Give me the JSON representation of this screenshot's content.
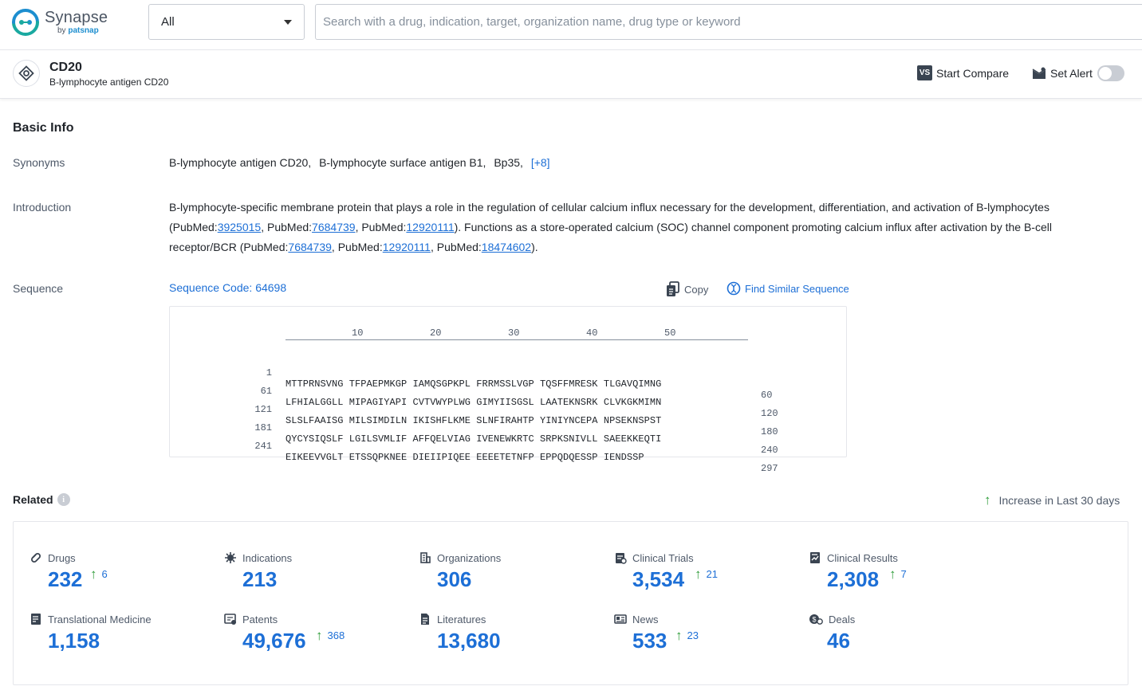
{
  "app": {
    "logo_main": "Synapse",
    "logo_by": "by ",
    "logo_brand": "patsnap"
  },
  "search": {
    "scope_value": "All",
    "placeholder": "Search with a drug, indication, target, organization name, drug type or keyword"
  },
  "entity": {
    "title": "CD20",
    "subtitle": "B-lymphocyte antigen CD20",
    "compare_label": "Start Compare",
    "compare_icon_text": "VS",
    "alert_label": "Set Alert",
    "alert_on": false
  },
  "basic_info": {
    "title": "Basic Info",
    "synonyms_label": "Synonyms",
    "synonyms": [
      "B-lymphocyte antigen CD20,",
      "B-lymphocyte surface antigen B1,",
      "Bp35,"
    ],
    "synonyms_more": "[+8]",
    "introduction_label": "Introduction",
    "intro": {
      "t1": "B-lymphocyte-specific membrane protein that plays a role in the regulation of cellular calcium influx necessary for the development, differentiation, and activation of B-lymphocytes (PubMed:",
      "l1": "3925015",
      "t2": ", PubMed:",
      "l2": "7684739",
      "t3": ", PubMed:",
      "l3": "12920111",
      "t4": "). Functions as a store-operated calcium (SOC) channel component promoting calcium influx after activation by the B-cell receptor/BCR (PubMed:",
      "l4": "7684739",
      "t5": ", PubMed:",
      "l5": "12920111",
      "t6": ", PubMed:",
      "l6": "18474602",
      "t7": ")."
    },
    "sequence_label": "Sequence",
    "sequence_code": "Sequence Code: 64698",
    "copy_label": "Copy",
    "find_similar_label": "Find Similar Sequence",
    "ruler": [
      "10",
      "20",
      "30",
      "40",
      "50"
    ],
    "sequence_rows": [
      {
        "start": "1",
        "seq": "MTTPRNSVNG TFPAEPMKGP IAMQSGPKPL FRRMSSLVGP TQSFFMRESK TLGAVQIMNG",
        "end": "60"
      },
      {
        "start": "61",
        "seq": "LFHIALGGLL MIPAGIYAPI CVTVWYPLWG GIMYIISGSL LAATEKNSRK CLVKGKMIMN",
        "end": "120"
      },
      {
        "start": "121",
        "seq": "SLSLFAAISG MILSIMDILN IKISHFLKME SLNFIRAHTP YINIYNCEPA NPSEKNSPST",
        "end": "180"
      },
      {
        "start": "181",
        "seq": "QYCYSIQSLF LGILSVMLIF AFFQELVIAG IVENEWKRTC SRPKSNIVLL SAEEKKEQTI",
        "end": "240"
      },
      {
        "start": "241",
        "seq": "EIKEEVVGLT ETSSQPKNEE DIEIIPIQEE EEEETETNFP EPPQDQESSP IENDSSP",
        "end": "297"
      }
    ]
  },
  "related": {
    "title": "Related",
    "info_icon_text": "i",
    "increase_legend": "Increase in Last 30 days",
    "up_arrow": "↑",
    "stats": [
      {
        "label": "Drugs",
        "icon": "pill-icon",
        "value": "232",
        "increase": "6"
      },
      {
        "label": "Indications",
        "icon": "virus-icon",
        "value": "213",
        "increase": ""
      },
      {
        "label": "Organizations",
        "icon": "building-icon",
        "value": "306",
        "increase": ""
      },
      {
        "label": "Clinical Trials",
        "icon": "clipboard-icon",
        "value": "3,534",
        "increase": "21"
      },
      {
        "label": "Clinical Results",
        "icon": "results-icon",
        "value": "2,308",
        "increase": "7"
      },
      {
        "label": "Translational Medicine",
        "icon": "book-icon",
        "value": "1,158",
        "increase": ""
      },
      {
        "label": "Patents",
        "icon": "patent-icon",
        "value": "49,676",
        "increase": "368"
      },
      {
        "label": "Literatures",
        "icon": "document-icon",
        "value": "13,680",
        "increase": ""
      },
      {
        "label": "News",
        "icon": "news-icon",
        "value": "533",
        "increase": "23"
      },
      {
        "label": "Deals",
        "icon": "deal-icon",
        "value": "46",
        "increase": ""
      }
    ]
  },
  "colors": {
    "link": "#1d6fd6",
    "increase": "#2f9d3a",
    "brand_teal": "#1aa9a0",
    "brand_blue": "#1d8ecf"
  }
}
